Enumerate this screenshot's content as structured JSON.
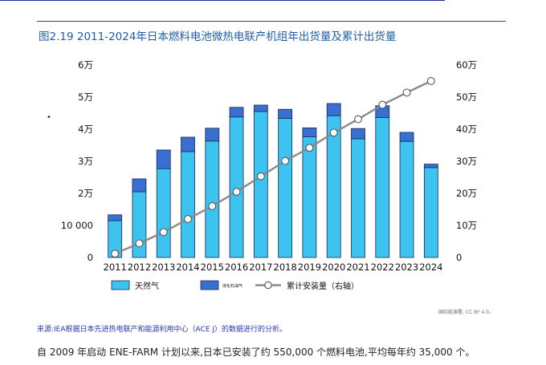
{
  "title": "图2.19 2011-2024年日本燃料电池微热电联产机组年出货量及累计出货量",
  "bullet": "•",
  "credit": "国际能源署, CC BY 4.0。",
  "source": {
    "prefix": "来源:IEA根据",
    "org": "日本先进热电联产和能源利用中心（ACE J）",
    "suffix": "的数据进行的分析。"
  },
  "footnote": "自 2009 年启动 ENE-FARM 计划以来,日本已安装了约 550,000 个燃料电池,平均每年约 35,000 个。",
  "colors": {
    "natural_gas": "#3dc3ef",
    "lpg": "#3a6fd2",
    "bar_edge": "#1b2a55",
    "cumulative": "#8a8a8a",
    "title": "#1f5ea8"
  },
  "chart_data": {
    "type": "bar",
    "stacked": true,
    "categories": [
      "2011",
      "2012",
      "2013",
      "2014",
      "2015",
      "2016",
      "2017",
      "2018",
      "2019",
      "2020",
      "2021",
      "2022",
      "2023",
      "2024"
    ],
    "series": [
      {
        "name": "天然气",
        "axis": "left",
        "values": [
          11500,
          20500,
          27700,
          33000,
          36300,
          43800,
          45500,
          43400,
          37600,
          44200,
          37000,
          43600,
          36200,
          28000
        ]
      },
      {
        "name": "液化石油气",
        "axis": "left",
        "values": [
          1800,
          4000,
          5800,
          4500,
          4000,
          3000,
          2000,
          2800,
          2800,
          3800,
          3200,
          3700,
          2800,
          1100
        ]
      },
      {
        "name": "累计安装量（右轴）",
        "axis": "right",
        "type": "line",
        "values": [
          1.2,
          4.4,
          7.9,
          12.0,
          16.0,
          20.5,
          25.3,
          30.1,
          34.2,
          38.9,
          43.1,
          47.6,
          51.4,
          55.0
        ]
      }
    ],
    "y_left": {
      "min": 0,
      "max": 60000,
      "ticks": [
        "0",
        "10 000",
        "2万",
        "3万",
        "4万",
        "5万",
        "6万"
      ]
    },
    "y_right": {
      "min": 0,
      "max": 60,
      "ticks": [
        "0",
        "10万",
        "20万",
        "30万",
        "40万",
        "50万",
        "60万"
      ]
    },
    "legend": {
      "placement": "bottom",
      "items": [
        "天然气",
        "液化石油气",
        "累计安装量（右轴）"
      ]
    },
    "grid": false
  }
}
